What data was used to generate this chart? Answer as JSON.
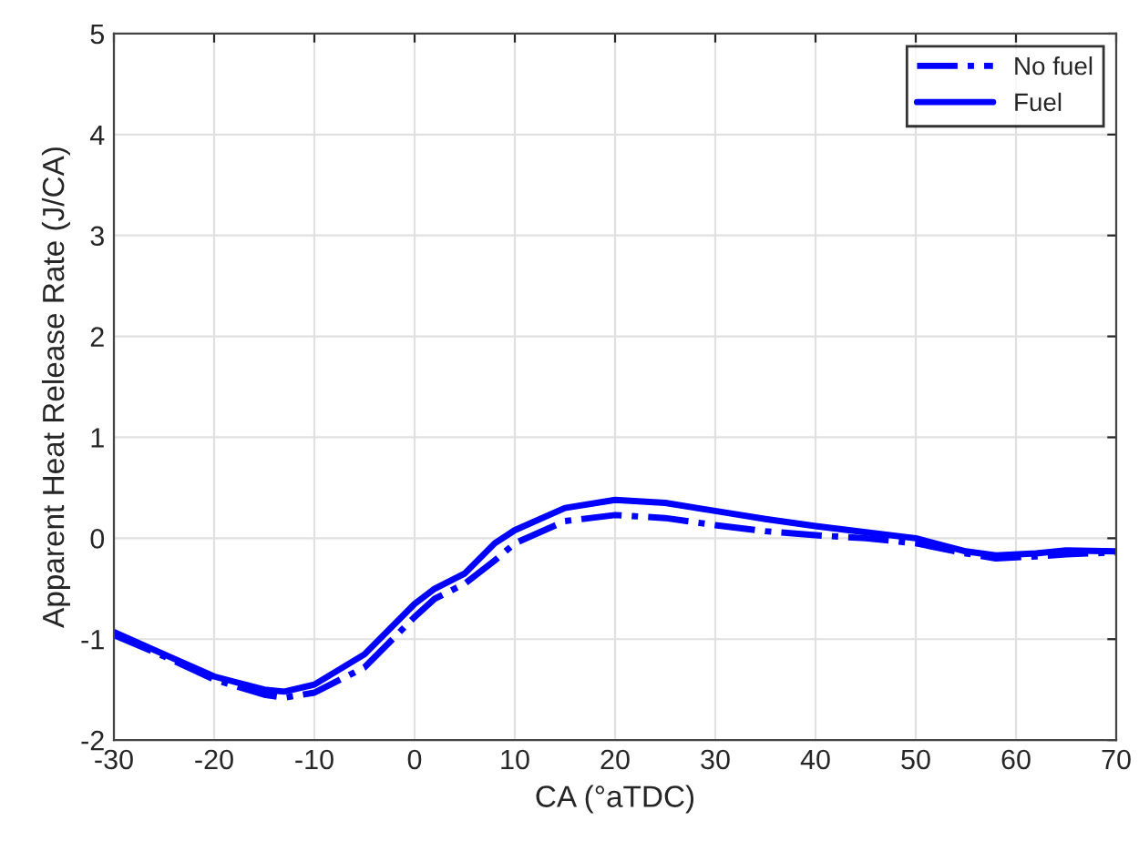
{
  "chart_data": {
    "type": "line",
    "xlabel": "CA (°aTDC)",
    "ylabel": "Apparent Heat Release Rate (J/CA)",
    "xlim": [
      -30,
      70
    ],
    "ylim": [
      -2,
      5
    ],
    "xticks": [
      -30,
      -20,
      -10,
      0,
      10,
      20,
      30,
      40,
      50,
      60,
      70
    ],
    "yticks": [
      -2,
      -1,
      0,
      1,
      2,
      3,
      4,
      5
    ],
    "grid": true,
    "legend": "top right",
    "x": [
      -30,
      -25,
      -20,
      -15,
      -13,
      -10,
      -5,
      0,
      2,
      5,
      8,
      10,
      15,
      20,
      25,
      30,
      35,
      40,
      45,
      50,
      55,
      58,
      62,
      65,
      70
    ],
    "series": [
      {
        "name": "No fuel",
        "color": "#0000ff",
        "line_style": "dashdot",
        "values": [
          -0.96,
          -1.17,
          -1.4,
          -1.55,
          -1.58,
          -1.53,
          -1.28,
          -0.78,
          -0.6,
          -0.45,
          -0.22,
          -0.05,
          0.17,
          0.23,
          0.2,
          0.13,
          0.07,
          0.03,
          0.0,
          -0.05,
          -0.15,
          -0.2,
          -0.18,
          -0.16,
          -0.14
        ]
      },
      {
        "name": "Fuel",
        "color": "#0000ff",
        "line_style": "solid",
        "values": [
          -0.93,
          -1.15,
          -1.37,
          -1.5,
          -1.52,
          -1.45,
          -1.15,
          -0.65,
          -0.5,
          -0.35,
          -0.05,
          0.08,
          0.3,
          0.38,
          0.35,
          0.27,
          0.19,
          0.12,
          0.06,
          0.0,
          -0.13,
          -0.17,
          -0.15,
          -0.12,
          -0.13
        ]
      }
    ]
  }
}
